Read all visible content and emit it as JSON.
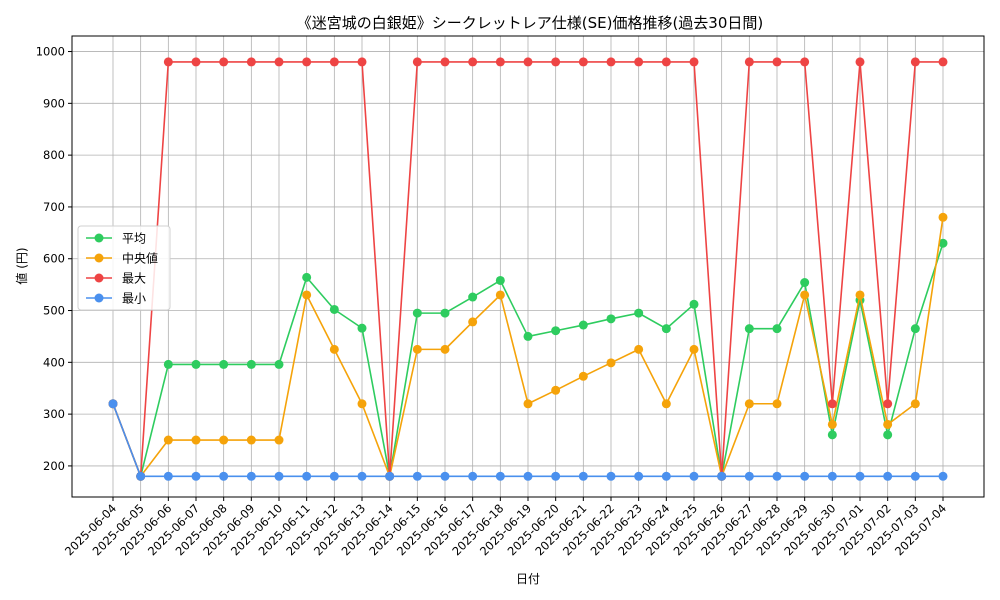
{
  "chart_data": {
    "type": "line",
    "title": "《迷宮城の白銀姫》シークレットレア仕様(SE)価格推移(過去30日間)",
    "xlabel": "日付",
    "ylabel": "値 (円)",
    "ylim": [
      140,
      1030
    ],
    "yticks": [
      200,
      300,
      400,
      500,
      600,
      700,
      800,
      900,
      1000
    ],
    "grid": true,
    "legend_position": "center-left",
    "categories": [
      "2025-06-04",
      "2025-06-05",
      "2025-06-06",
      "2025-06-07",
      "2025-06-08",
      "2025-06-09",
      "2025-06-10",
      "2025-06-11",
      "2025-06-12",
      "2025-06-13",
      "2025-06-14",
      "2025-06-15",
      "2025-06-16",
      "2025-06-17",
      "2025-06-18",
      "2025-06-19",
      "2025-06-20",
      "2025-06-21",
      "2025-06-22",
      "2025-06-23",
      "2025-06-24",
      "2025-06-25",
      "2025-06-26",
      "2025-06-27",
      "2025-06-28",
      "2025-06-29",
      "2025-06-30",
      "2025-07-01",
      "2025-07-02",
      "2025-07-03",
      "2025-07-04"
    ],
    "series": [
      {
        "name": "平均",
        "color": "#2ecc5f",
        "values": [
          320,
          180,
          396,
          396,
          396,
          396,
          396,
          564,
          502,
          466,
          180,
          495,
          495,
          526,
          558,
          450,
          461,
          472,
          484,
          495,
          465,
          512,
          180,
          465,
          465,
          554,
          260,
          520,
          260,
          465,
          630
        ]
      },
      {
        "name": "中央値",
        "color": "#f5a30a",
        "values": [
          320,
          180,
          250,
          250,
          250,
          250,
          250,
          530,
          425,
          320,
          180,
          425,
          425,
          478,
          530,
          320,
          346,
          373,
          399,
          425,
          320,
          425,
          180,
          320,
          320,
          530,
          280,
          530,
          280,
          320,
          680
        ]
      },
      {
        "name": "最大",
        "color": "#ee4444",
        "values": [
          320,
          180,
          980,
          980,
          980,
          980,
          980,
          980,
          980,
          980,
          180,
          980,
          980,
          980,
          980,
          980,
          980,
          980,
          980,
          980,
          980,
          980,
          180,
          980,
          980,
          980,
          320,
          980,
          320,
          980,
          980
        ]
      },
      {
        "name": "最小",
        "color": "#4a90ee",
        "values": [
          320,
          180,
          180,
          180,
          180,
          180,
          180,
          180,
          180,
          180,
          180,
          180,
          180,
          180,
          180,
          180,
          180,
          180,
          180,
          180,
          180,
          180,
          180,
          180,
          180,
          180,
          180,
          180,
          180,
          180,
          180
        ]
      }
    ]
  }
}
